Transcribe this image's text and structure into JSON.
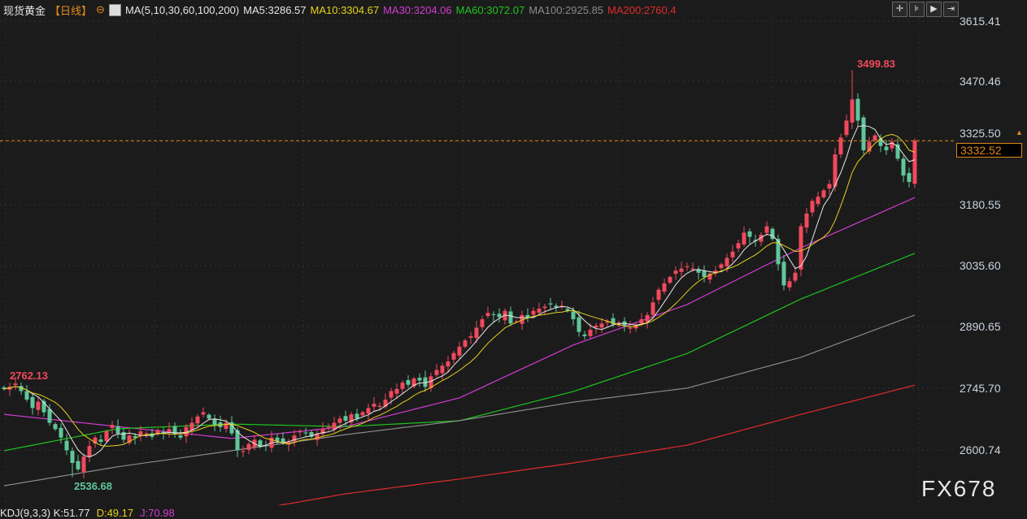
{
  "header": {
    "symbol": "现货黄金",
    "period": "【日线】",
    "ma_label": "MA(5,10,30,60,100,200)",
    "ma5": "MA5:3286.57",
    "ma10": "MA10:3304.67",
    "ma30": "MA30:3204.06",
    "ma60": "MA60:3072.07",
    "ma100": "MA100:2925.85",
    "ma200": "MA200:2760.4"
  },
  "toolbar": [
    "crosshair-icon",
    "zoom-range-icon",
    "play-icon",
    "exit-icon"
  ],
  "axis": {
    "ticks": [
      "3615.41",
      "3470.46",
      "3325.50",
      "3180.55",
      "3035.60",
      "2890.65",
      "2745.70",
      "2600.74"
    ]
  },
  "current_price": "3332.52",
  "annotations": {
    "high": "3499.83",
    "low": "2536.68",
    "left": "2762.13"
  },
  "indicator": {
    "kdj": "KDJ(9,3,3) K:51.77",
    "d": "D:49.17",
    "j": "J:70.98"
  },
  "watermark": "FX678",
  "colors": {
    "up": "#f2495c",
    "down": "#5fc79b",
    "ma5": "#e8e8e8",
    "ma10": "#e6d21c",
    "ma30": "#d23cd2",
    "ma60": "#1fc41f",
    "ma100": "#8a8a8a",
    "ma200": "#e02b2b",
    "price_line": "#e08a1a"
  },
  "chart_data": {
    "type": "candlestick",
    "ylim": [
      2600.74,
      3615.41
    ],
    "high": 3499.83,
    "low": 2536.68,
    "closes": [
      2745,
      2750,
      2758,
      2740,
      2720,
      2700,
      2715,
      2690,
      2665,
      2650,
      2630,
      2600,
      2570,
      2555,
      2585,
      2610,
      2630,
      2620,
      2645,
      2660,
      2640,
      2625,
      2635,
      2630,
      2645,
      2640,
      2632,
      2648,
      2640,
      2650,
      2638,
      2630,
      2655,
      2665,
      2680,
      2690,
      2675,
      2660,
      2655,
      2665,
      2640,
      2600,
      2598,
      2615,
      2625,
      2608,
      2612,
      2630,
      2622,
      2618,
      2620,
      2635,
      2645,
      2640,
      2632,
      2640,
      2650,
      2655,
      2665,
      2675,
      2670,
      2685,
      2675,
      2690,
      2700,
      2710,
      2705,
      2720,
      2740,
      2745,
      2760,
      2755,
      2770,
      2765,
      2750,
      2775,
      2790,
      2800,
      2810,
      2830,
      2845,
      2860,
      2870,
      2890,
      2910,
      2925,
      2920,
      2915,
      2930,
      2900,
      2905,
      2920,
      2915,
      2930,
      2935,
      2940,
      2945,
      2938,
      2942,
      2930,
      2910,
      2880,
      2870,
      2885,
      2895,
      2900,
      2905,
      2898,
      2902,
      2895,
      2890,
      2895,
      2910,
      2920,
      2950,
      2980,
      2995,
      3010,
      3025,
      3030,
      3035,
      3030,
      3020,
      3010,
      3018,
      3025,
      3040,
      3055,
      3070,
      3090,
      3115,
      3105,
      3095,
      3110,
      3130,
      3100,
      3040,
      2990,
      3000,
      3020,
      3130,
      3160,
      3190,
      3200,
      3215,
      3230,
      3300,
      3340,
      3380,
      3430,
      3380,
      3310,
      3330,
      3345,
      3320,
      3310,
      3330,
      3290,
      3250,
      3235,
      3332.52
    ],
    "ma_long": {
      "ma30": [
        2685,
        2656,
        2628,
        2656,
        2724,
        2849,
        2945,
        3079,
        3198
      ],
      "ma60": [
        2599,
        2651,
        2662,
        2656,
        2670,
        2739,
        2829,
        2958,
        3066
      ],
      "ma100": [
        2516,
        2561,
        2599,
        2637,
        2670,
        2714,
        2747,
        2820,
        2920
      ],
      "ma200": [
        2400,
        2425,
        2450,
        2497,
        2532,
        2570,
        2612,
        2685,
        2754
      ]
    }
  }
}
